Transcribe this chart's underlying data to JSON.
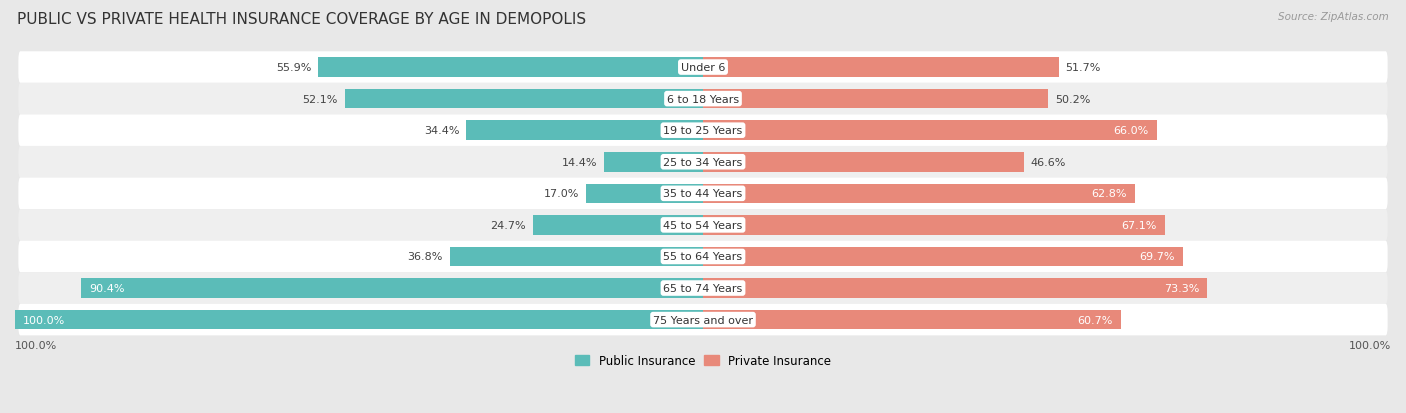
{
  "title": "PUBLIC VS PRIVATE HEALTH INSURANCE COVERAGE BY AGE IN DEMOPOLIS",
  "source": "Source: ZipAtlas.com",
  "categories": [
    "Under 6",
    "6 to 18 Years",
    "19 to 25 Years",
    "25 to 34 Years",
    "35 to 44 Years",
    "45 to 54 Years",
    "55 to 64 Years",
    "65 to 74 Years",
    "75 Years and over"
  ],
  "public_values": [
    55.9,
    52.1,
    34.4,
    14.4,
    17.0,
    24.7,
    36.8,
    90.4,
    100.0
  ],
  "private_values": [
    51.7,
    50.2,
    66.0,
    46.6,
    62.8,
    67.1,
    69.7,
    73.3,
    60.7
  ],
  "public_color": "#5bbcb8",
  "private_color": "#e8897a",
  "bg_color": "#e8e8e8",
  "row_colors": [
    "#ffffff",
    "#efefef"
  ],
  "title_fontsize": 11,
  "label_fontsize": 8,
  "bar_height": 0.62,
  "legend_public": "Public Insurance",
  "legend_private": "Private Insurance",
  "pub_label_white_threshold": 60,
  "priv_label_white_threshold": 55
}
